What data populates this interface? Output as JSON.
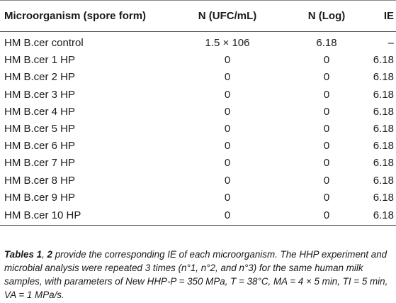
{
  "table": {
    "headers": [
      "Microorganism (spore form)",
      "N (UFC/mL)",
      "N (Log)",
      "IE"
    ],
    "rows": [
      [
        "HM B.cer control",
        "1.5 × 106",
        "6.18",
        "–"
      ],
      [
        "HM B.cer 1 HP",
        "0",
        "0",
        "6.18"
      ],
      [
        "HM B.cer 2 HP",
        "0",
        "0",
        "6.18"
      ],
      [
        "HM B.cer 3 HP",
        "0",
        "0",
        "6.18"
      ],
      [
        "HM B.cer 4 HP",
        "0",
        "0",
        "6.18"
      ],
      [
        "HM B.cer 5 HP",
        "0",
        "0",
        "6.18"
      ],
      [
        "HM B.cer 6 HP",
        "0",
        "0",
        "6.18"
      ],
      [
        "HM B.cer 7 HP",
        "0",
        "0",
        "6.18"
      ],
      [
        "HM B.cer 8 HP",
        "0",
        "0",
        "6.18"
      ],
      [
        "HM B.cer 9 HP",
        "0",
        "0",
        "6.18"
      ],
      [
        "HM B.cer 10 HP",
        "0",
        "0",
        "6.18"
      ]
    ]
  },
  "caption": {
    "ref_tables": "Tables 1",
    "ref_sep": ", ",
    "ref_table2": "2",
    "text": " provide the corresponding IE of each microorganism. The HHP experiment and microbial analysis were repeated 3 times (n°1, n°2, and n°3) for the same human milk samples, with parameters of New HHP-P = 350 MPa, T = 38°C, MA = 4 × 5 min, TI = 5 min, VA = 1 MPa/s."
  }
}
